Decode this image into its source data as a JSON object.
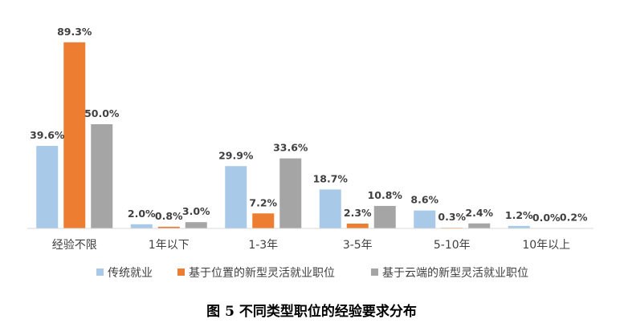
{
  "chart_data": {
    "type": "bar",
    "title": "",
    "xlabel": "",
    "ylabel": "",
    "ylim": [
      0,
      100
    ],
    "grid": false,
    "legend_position": "bottom",
    "categories": [
      "经验不限",
      "1年以下",
      "1-3年",
      "3-5年",
      "5-10年",
      "10年以上"
    ],
    "series": [
      {
        "name": "传统就业",
        "color": "#a9c9e8",
        "values": [
          39.6,
          2.0,
          29.9,
          18.7,
          8.6,
          1.2
        ],
        "labels": [
          "39.6%",
          "2.0%",
          "29.9%",
          "18.7%",
          "8.6%",
          "1.2%"
        ]
      },
      {
        "name": "基于位置的新型灵活就业职位",
        "color": "#ed7d31",
        "values": [
          89.3,
          0.8,
          7.2,
          2.3,
          0.3,
          0.0
        ],
        "labels": [
          "89.3%",
          "0.8%",
          "7.2%",
          "2.3%",
          "0.3%",
          "0.0%"
        ]
      },
      {
        "name": "基于云端的新型灵活就业职位",
        "color": "#a5a5a5",
        "values": [
          50.0,
          3.0,
          33.6,
          10.8,
          2.4,
          0.2
        ],
        "labels": [
          "50.0%",
          "3.0%",
          "33.6%",
          "10.8%",
          "2.4%",
          "0.2%"
        ]
      }
    ]
  },
  "caption": "图 5  不同类型职位的经验要求分布"
}
